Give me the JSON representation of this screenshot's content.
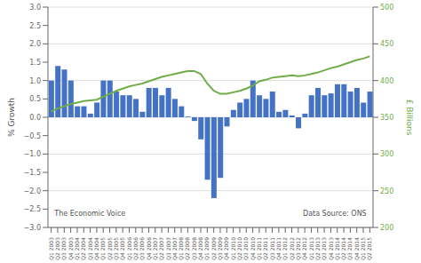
{
  "chart_data": {
    "type": "bar",
    "ylabel": "% Growth",
    "y2label": "£ Billions",
    "categories": [
      "Q1\n2003",
      "Q2\n2003",
      "Q3\n2003",
      "Q4\n2003",
      "Q1\n2004",
      "Q2\n2004",
      "Q3\n2004",
      "Q4\n2004",
      "Q1\n2005",
      "Q2\n2005",
      "Q3\n2005",
      "Q4\n2005",
      "Q1\n2006",
      "Q2\n2006",
      "Q3\n2006",
      "Q4\n2006",
      "Q1\n2007",
      "Q2\n2007",
      "Q3\n2007",
      "Q4\n2007",
      "Q1\n2008",
      "Q2\n2008",
      "Q3\n2008",
      "Q4\n2008",
      "Q1\n2009",
      "Q2\n2009",
      "Q3\n2009",
      "Q4\n2009",
      "Q1\n2010",
      "Q2\n2010",
      "Q3\n2010",
      "Q4\n2010",
      "Q1\n2011",
      "Q2\n2011",
      "Q3\n2011",
      "Q4\n2011",
      "Q1\n2012",
      "Q2\n2012",
      "Q3\n2012",
      "Q4\n2012",
      "Q1\n2013",
      "Q2\n2013",
      "Q3\n2013",
      "Q4\n2013",
      "Q1\n2014",
      "Q2\n2014",
      "Q3\n2014",
      "Q4\n2014",
      "Q1\n2015",
      "Q2\n2015"
    ],
    "series": [
      {
        "type": "bar",
        "color": "#4472C4",
        "values": [
          1.0,
          1.4,
          1.3,
          1.0,
          0.3,
          0.3,
          0.1,
          0.4,
          1.0,
          1.0,
          0.7,
          0.6,
          0.6,
          0.5,
          0.15,
          0.8,
          0.8,
          0.6,
          0.8,
          0.5,
          0.3,
          0.02,
          -0.1,
          -0.6,
          -1.7,
          -2.2,
          -1.65,
          -0.25,
          0.2,
          0.4,
          0.5,
          1.0,
          0.6,
          0.5,
          0.7,
          0.15,
          0.2,
          0.05,
          -0.3,
          0.1,
          0.6,
          0.8,
          0.6,
          0.65,
          0.9,
          0.9,
          0.7,
          0.8,
          0.4,
          0.7
        ]
      },
      {
        "type": "line",
        "axis": "y2",
        "color": "#70AD47",
        "values": [
          358,
          362,
          365,
          368,
          370,
          372,
          373,
          374,
          378,
          382,
          386,
          389,
          392,
          394,
          396,
          399,
          402,
          405,
          407,
          409,
          411,
          413,
          413,
          409,
          396,
          386,
          382,
          382,
          384,
          386,
          389,
          393,
          399,
          401,
          404,
          405,
          406,
          407,
          406,
          407,
          409,
          411,
          414,
          417,
          419,
          422,
          425,
          428,
          430,
          433
        ]
      }
    ],
    "ylim": [
      -3.0,
      3.0
    ],
    "yticks": [
      {
        "value": -3.0,
        "label": "−3.0"
      },
      {
        "value": -2.5,
        "label": "−2.5"
      },
      {
        "value": -2.0,
        "label": "−2.0"
      },
      {
        "value": -1.5,
        "label": "−1.5"
      },
      {
        "value": -1.0,
        "label": "−1.0"
      },
      {
        "value": -0.5,
        "label": "−0.5"
      },
      {
        "value": 0.0,
        "label": "0.0"
      },
      {
        "value": 0.5,
        "label": "0.5"
      },
      {
        "value": 1.0,
        "label": "1.0"
      },
      {
        "value": 1.5,
        "label": "1.5"
      },
      {
        "value": 2.0,
        "label": "2.0"
      },
      {
        "value": 2.5,
        "label": "2.5"
      },
      {
        "value": 3.0,
        "label": "3.0"
      }
    ],
    "y2lim": [
      200,
      500
    ],
    "y2ticks": [
      200,
      250,
      300,
      350,
      400,
      450,
      500
    ],
    "grid": true,
    "annotations": [
      "The Economic Voice",
      "Data Source: ONS"
    ]
  }
}
